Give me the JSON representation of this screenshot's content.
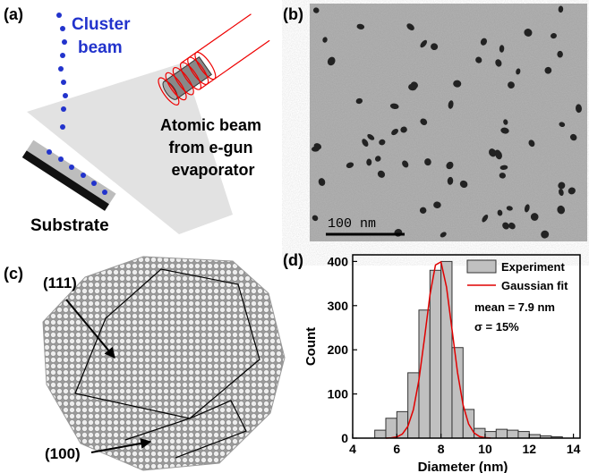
{
  "panels": {
    "a": {
      "label": "(a)",
      "cluster_beam": [
        "Cluster",
        "beam"
      ],
      "atomic_beam": [
        "Atomic beam",
        "from e-gun",
        "evaporator"
      ],
      "substrate": "Substrate"
    },
    "b": {
      "label": "(b)",
      "scale_bar": "100 nm"
    },
    "c": {
      "label": "(c)",
      "facet_111": "(111)",
      "facet_100": "(100)"
    },
    "d": {
      "label": "(d)"
    }
  },
  "chart_data": {
    "type": "histogram",
    "x_label": "Diameter (nm)",
    "y_label": "Count",
    "annotations": [
      "mean = 7.9 nm",
      "σ = 15%"
    ],
    "bins": [
      5,
      5.5,
      6,
      6.5,
      7,
      7.5,
      8,
      8.5,
      9,
      9.5,
      10,
      10.5,
      11,
      11.5,
      12,
      12.5,
      13,
      13.5
    ],
    "series": [
      {
        "name": "Experiment",
        "color": "#c0c0c0",
        "values": [
          18,
          45,
          60,
          148,
          290,
          380,
          400,
          205,
          65,
          22,
          15,
          20,
          18,
          15,
          8,
          5,
          3
        ]
      },
      {
        "name": "Gaussian fit",
        "color": "#e00000",
        "x": [
          5.5,
          5.75,
          6,
          6.25,
          6.5,
          6.75,
          7,
          7.25,
          7.5,
          7.75,
          8,
          8.25,
          8.5,
          8.75,
          9,
          9.25,
          9.5,
          9.75,
          10,
          10.25
        ],
        "values": [
          0.1,
          0.7,
          2.7,
          9.2,
          26.6,
          64.5,
          131.5,
          225,
          324,
          392,
          399,
          342,
          246,
          148.5,
          75.4,
          32.2,
          11.6,
          3.5,
          0.9,
          0.2
        ]
      }
    ],
    "xlim": [
      4,
      14.3
    ],
    "ylim": [
      0,
      415
    ],
    "xticks": [
      4,
      6,
      8,
      10,
      12,
      14
    ],
    "yticks": [
      0,
      100,
      200,
      300,
      400
    ]
  }
}
